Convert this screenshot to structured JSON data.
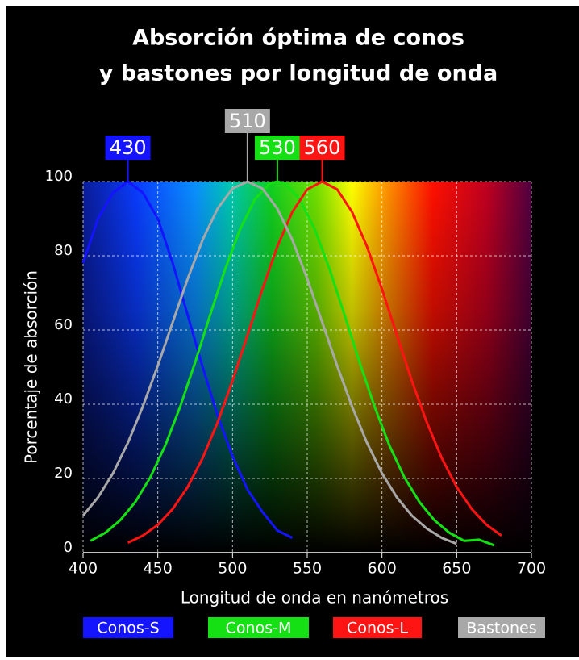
{
  "chart_data": {
    "type": "line",
    "title": [
      "Absorción óptima de conos",
      "y bastones por longitud de onda"
    ],
    "x_label": "Longitud de onda en nanómetros",
    "y_label": "Porcentaje de absorción",
    "xlim": [
      400,
      700
    ],
    "xticks": [
      400,
      450,
      500,
      550,
      600,
      650,
      700
    ],
    "ylim": [
      0,
      100
    ],
    "yticks": [
      0,
      20,
      40,
      60,
      80,
      100
    ],
    "grid": true,
    "series": [
      {
        "name": "Conos-S",
        "color": "#1414ff",
        "peak": 430,
        "x": [
          400,
          410,
          420,
          430,
          440,
          450,
          460,
          470,
          480,
          490,
          500,
          510,
          520,
          530,
          540
        ],
        "values": [
          78,
          90,
          97,
          100,
          97,
          90,
          78,
          64,
          50,
          37,
          26,
          17,
          11,
          6,
          4
        ]
      },
      {
        "name": "Conos-M",
        "color": "#14e014",
        "peak": 530,
        "x": [
          405,
          415,
          425,
          435,
          445,
          455,
          465,
          475,
          485,
          495,
          505,
          515,
          525,
          530,
          535,
          545,
          555,
          565,
          575,
          585,
          595,
          605,
          615,
          625,
          635,
          645,
          655,
          665,
          675
        ],
        "values": [
          3.2,
          5.4,
          8.8,
          13.7,
          20.3,
          28.9,
          39.4,
          51.3,
          64.0,
          76.3,
          87.1,
          95.2,
          99.5,
          100,
          99.5,
          95.2,
          87.1,
          76.3,
          64.0,
          51.3,
          39.4,
          28.9,
          20.3,
          13.7,
          8.8,
          5.4,
          3.2,
          3.5,
          2
        ]
      },
      {
        "name": "Conos-L",
        "color": "#ff1414",
        "peak": 560,
        "x": [
          430,
          440,
          450,
          460,
          470,
          480,
          490,
          500,
          510,
          520,
          530,
          540,
          550,
          560,
          570,
          580,
          590,
          600,
          610,
          620,
          630,
          640,
          650,
          660,
          670,
          680
        ],
        "values": [
          2.7,
          4.6,
          7.5,
          11.8,
          17.7,
          25.5,
          35.1,
          46.3,
          58.6,
          71.0,
          82.5,
          91.8,
          97.9,
          100,
          97.9,
          91.8,
          82.5,
          71.0,
          58.6,
          46.3,
          35.1,
          25.5,
          17.7,
          11.8,
          7.5,
          4.6
        ]
      },
      {
        "name": "Bastones",
        "color": "#a8a8a8",
        "peak": 510,
        "x": [
          400,
          410,
          420,
          430,
          440,
          450,
          460,
          470,
          480,
          490,
          500,
          510,
          520,
          530,
          540,
          550,
          560,
          570,
          580,
          590,
          600,
          610,
          620,
          630,
          640,
          650
        ],
        "values": [
          10.0,
          14.9,
          21.4,
          29.6,
          39.4,
          50.4,
          62.1,
          73.8,
          84.3,
          92.7,
          98.1,
          100,
          98.1,
          92.7,
          84.3,
          73.8,
          62.1,
          50.4,
          39.4,
          29.6,
          21.4,
          14.9,
          10.0,
          6.5,
          4.0,
          2.4
        ]
      }
    ]
  }
}
